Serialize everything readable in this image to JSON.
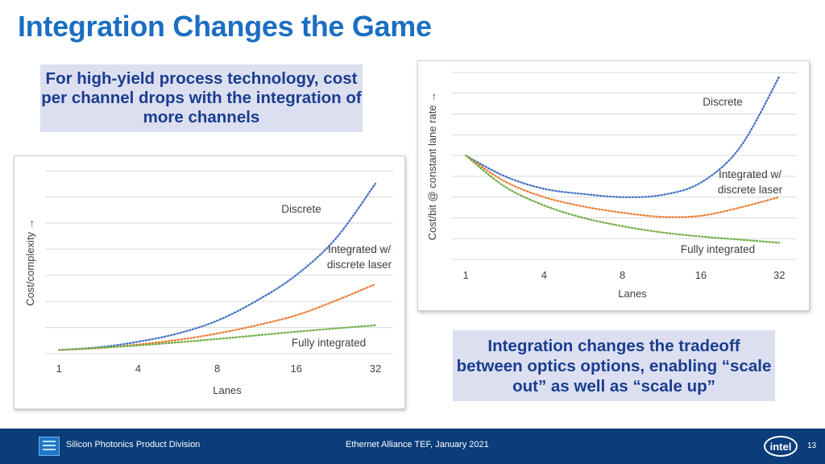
{
  "slide": {
    "title": "Integration Changes the Game",
    "callout_top": "For high-yield process technology, cost per channel drops with the integration of more channels",
    "callout_bottom": "Integration changes the tradeoff between optics options, enabling “scale out” as well as “scale up”"
  },
  "footer": {
    "division": "Silicon Photonics Product Division",
    "event": "Ethernet Alliance TEF, January 2021",
    "brand": "intel",
    "page": "13"
  },
  "colors": {
    "title": "#1b6ec2",
    "callout_bg": "#dcdff0",
    "callout_text": "#1a3d8f",
    "footer_bg": "#0a3d7a",
    "discrete": "#4472c4",
    "integrated_discrete_laser": "#ed7d31",
    "fully_integrated": "#70ad47"
  },
  "chart_data": [
    {
      "type": "line",
      "xlabel": "Lanes",
      "ylabel": "Cost/complexity →",
      "x": [
        "1",
        "4",
        "8",
        "16",
        "32"
      ],
      "ylim": [
        0,
        10
      ],
      "grid": true,
      "series": [
        {
          "name": "Discrete",
          "color": "#4472c4",
          "x": [
            1,
            1.5,
            2,
            2.5,
            3,
            3.5,
            4,
            4.5,
            5
          ],
          "values": [
            0.2,
            0.35,
            0.65,
            1.1,
            1.8,
            2.9,
            4.3,
            6.3,
            9.3
          ]
        },
        {
          "name": "Integrated w/ discrete laser",
          "color": "#ed7d31",
          "x": [
            1,
            1.5,
            2,
            2.5,
            3,
            3.5,
            4,
            4.5,
            5
          ],
          "values": [
            0.2,
            0.3,
            0.5,
            0.75,
            1.1,
            1.55,
            2.1,
            2.9,
            3.8
          ]
        },
        {
          "name": "Fully integrated",
          "color": "#70ad47",
          "x": [
            1,
            2,
            3,
            4,
            5
          ],
          "values": [
            0.2,
            0.45,
            0.8,
            1.2,
            1.55
          ]
        }
      ],
      "labels": [
        {
          "series": 0,
          "lines": [
            "Discrete"
          ]
        },
        {
          "series": 1,
          "lines": [
            "Integrated w/",
            "discrete laser"
          ]
        },
        {
          "series": 2,
          "lines": [
            "Fully integrated"
          ]
        }
      ]
    },
    {
      "type": "line",
      "xlabel": "Lanes",
      "ylabel": "Cost/bit @ constant lane rate →",
      "x": [
        "1",
        "4",
        "8",
        "16",
        "32"
      ],
      "ylim": [
        0,
        9
      ],
      "grid": true,
      "series": [
        {
          "name": "Discrete",
          "color": "#4472c4",
          "x": [
            1,
            1.5,
            2,
            2.5,
            3,
            3.5,
            4,
            4.5,
            5
          ],
          "values": [
            5.0,
            4.0,
            3.4,
            3.15,
            3.0,
            3.1,
            3.7,
            5.4,
            8.8
          ]
        },
        {
          "name": "Integrated w/ discrete laser",
          "color": "#ed7d31",
          "x": [
            1,
            1.5,
            2,
            2.5,
            3,
            3.5,
            4,
            4.5,
            5
          ],
          "values": [
            5.0,
            3.75,
            3.0,
            2.55,
            2.25,
            2.05,
            2.1,
            2.5,
            3.0
          ]
        },
        {
          "name": "Fully integrated",
          "color": "#70ad47",
          "x": [
            1,
            1.5,
            2,
            2.5,
            3,
            3.5,
            4,
            4.5,
            5
          ],
          "values": [
            5.0,
            3.5,
            2.6,
            2.0,
            1.6,
            1.3,
            1.1,
            0.95,
            0.8
          ]
        }
      ],
      "labels": [
        {
          "series": 0,
          "lines": [
            "Discrete"
          ]
        },
        {
          "series": 1,
          "lines": [
            "Integrated w/",
            "discrete laser"
          ]
        },
        {
          "series": 2,
          "lines": [
            "Fully integrated"
          ]
        }
      ]
    }
  ]
}
